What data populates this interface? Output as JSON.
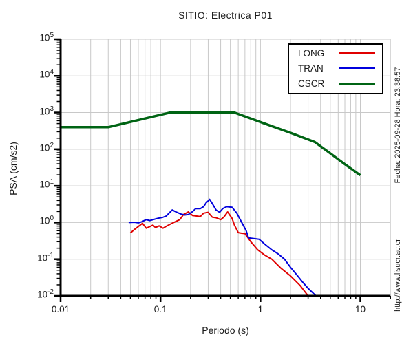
{
  "watermarks": {
    "right_top": "Fecha: 2025-09-28 Hora: 23:38:57",
    "right_bottom": "http://www.lisucr.ac.cr"
  },
  "chart_data": {
    "type": "line",
    "title": "SITIO: Electrica P01",
    "xlabel": "Periodo (s)",
    "ylabel": "PSA (cm/s2)",
    "x_scale": "log",
    "y_scale": "log",
    "xlim": [
      0.01,
      20
    ],
    "ylim": [
      0.01,
      100000
    ],
    "x_major_ticks": [
      0.01,
      0.1,
      1,
      10
    ],
    "x_tick_labels": [
      "0.01",
      "0.1",
      "1",
      "10"
    ],
    "y_tick_exponents": [
      5,
      4,
      3,
      2,
      1,
      0,
      -1,
      -2
    ],
    "grid": {
      "vertical": "log decades and minor multiples 2-9",
      "horizontal": "log decades only",
      "color": "#c8c8c8"
    },
    "legend_position": "upper right",
    "series": [
      {
        "name": "LONG",
        "color": "#e00000",
        "line_width": 2,
        "x": [
          0.05,
          0.055,
          0.06,
          0.066,
          0.072,
          0.08,
          0.084,
          0.089,
          0.097,
          0.106,
          0.115,
          0.129,
          0.156,
          0.17,
          0.19,
          0.21,
          0.23,
          0.25,
          0.27,
          0.3,
          0.33,
          0.36,
          0.4,
          0.43,
          0.47,
          0.52,
          0.55,
          0.6,
          0.65,
          0.7,
          0.8,
          0.94,
          1.1,
          1.3,
          1.6,
          2.0,
          2.5,
          3.0
        ],
        "y": [
          0.52,
          0.65,
          0.78,
          0.95,
          0.7,
          0.8,
          0.85,
          0.73,
          0.81,
          0.7,
          0.8,
          0.94,
          1.2,
          1.65,
          1.95,
          1.55,
          1.5,
          1.45,
          1.8,
          1.9,
          1.4,
          1.35,
          1.2,
          1.4,
          1.95,
          1.3,
          0.85,
          0.53,
          0.51,
          0.5,
          0.3,
          0.18,
          0.13,
          0.1,
          0.057,
          0.035,
          0.019,
          0.01
        ]
      },
      {
        "name": "TRAN",
        "color": "#0000dd",
        "line_width": 2,
        "x": [
          0.048,
          0.055,
          0.06,
          0.065,
          0.072,
          0.078,
          0.094,
          0.105,
          0.114,
          0.131,
          0.146,
          0.16,
          0.175,
          0.19,
          0.21,
          0.225,
          0.25,
          0.27,
          0.285,
          0.3,
          0.31,
          0.33,
          0.36,
          0.39,
          0.42,
          0.46,
          0.52,
          0.58,
          0.65,
          0.72,
          0.76,
          0.97,
          1.1,
          1.3,
          1.5,
          1.74,
          2.0,
          2.3,
          2.6,
          3.0,
          3.6
        ],
        "y": [
          1.0,
          1.02,
          0.98,
          1.05,
          1.2,
          1.13,
          1.3,
          1.38,
          1.5,
          2.2,
          1.9,
          1.7,
          1.6,
          1.65,
          2.0,
          2.4,
          2.4,
          2.7,
          3.4,
          3.9,
          4.3,
          3.3,
          2.2,
          1.9,
          2.4,
          2.7,
          2.6,
          1.8,
          1.0,
          0.6,
          0.38,
          0.35,
          0.26,
          0.18,
          0.14,
          0.1,
          0.06,
          0.038,
          0.025,
          0.016,
          0.01
        ]
      },
      {
        "name": "CSCR",
        "color": "#006414",
        "line_width": 3.5,
        "x": [
          0.01,
          0.03,
          0.125,
          0.55,
          1.0,
          2.0,
          3.5,
          5.0,
          7.0,
          10.0
        ],
        "y": [
          400,
          400,
          1000,
          1000,
          550,
          280,
          157,
          77,
          39,
          19.5
        ]
      }
    ]
  }
}
